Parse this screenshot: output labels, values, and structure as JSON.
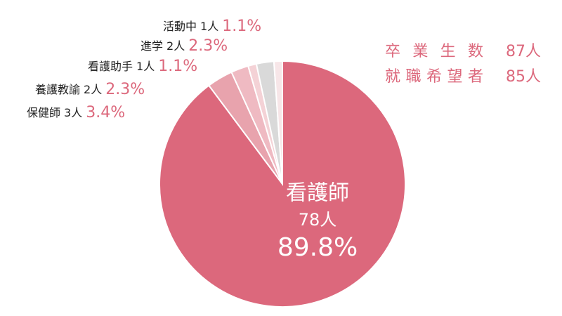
{
  "chart_data": {
    "type": "pie",
    "categories": [
      "看護師",
      "保健師",
      "養護教諭",
      "看護助手",
      "進学",
      "活動中"
    ],
    "values": [
      89.8,
      3.4,
      2.3,
      1.1,
      2.3,
      1.1
    ],
    "value_labels": [
      "89.8%",
      "3.4%",
      "2.3%",
      "1.1%",
      "2.3%",
      "1.1%"
    ],
    "counts": [
      "78人",
      "3人",
      "2人",
      "1人",
      "2人",
      "1人"
    ],
    "colors": [
      "#dc687c",
      "#e8a3ad",
      "#efbac2",
      "#f4d2d6",
      "#d9d9d9",
      "#f7e6e8"
    ],
    "summary": [
      {
        "label": "卒業生数",
        "value": "87人"
      },
      {
        "label": "就職希望者",
        "value": "85人"
      }
    ]
  }
}
